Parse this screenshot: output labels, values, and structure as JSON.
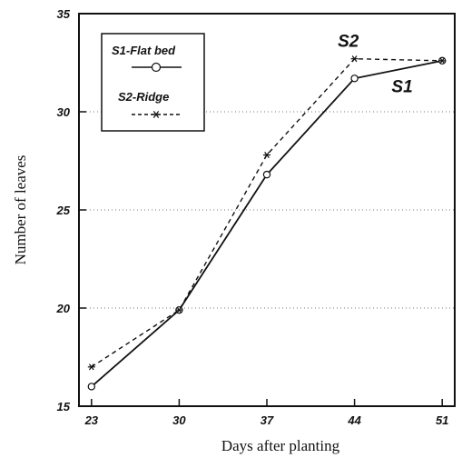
{
  "chart_data": {
    "type": "line",
    "x": [
      23,
      30,
      37,
      44,
      51
    ],
    "xlabel": "Days after planting",
    "ylabel": "Number of leaves",
    "xlim": [
      22,
      52
    ],
    "ylim": [
      15,
      35
    ],
    "yticks": [
      15,
      20,
      25,
      30,
      35
    ],
    "xticks": [
      23,
      30,
      37,
      44,
      51
    ],
    "grid": "horizontal dotted",
    "legend_position": "top-left",
    "series": [
      {
        "name": "S1-Flat bed",
        "values": [
          16.0,
          19.9,
          26.8,
          31.7,
          32.6
        ],
        "marker": "circle",
        "line": "solid",
        "color": "#111111"
      },
      {
        "name": "S2-Ridge",
        "values": [
          17.0,
          19.9,
          27.8,
          32.7,
          32.6
        ],
        "marker": "asterisk",
        "line": "dashed",
        "color": "#111111"
      }
    ],
    "annotations": [
      {
        "text": "S2",
        "x": 43.5,
        "y": 33.3
      },
      {
        "text": "S1",
        "x": 47.8,
        "y": 31.0
      }
    ]
  }
}
